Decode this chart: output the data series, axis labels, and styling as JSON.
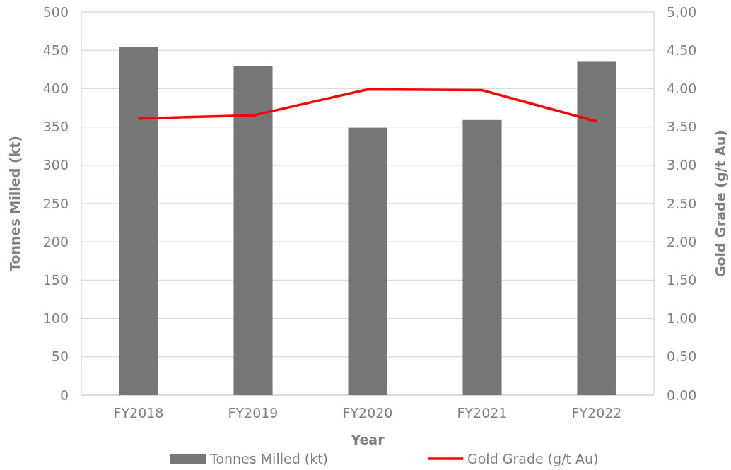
{
  "chart_data": {
    "type": "bar",
    "xlabel": "Year",
    "ylabel": "Tonnes Milled (kt)",
    "y2label": "Gold Grade (g/t Au)",
    "categories": [
      "FY2018",
      "FY2019",
      "FY2020",
      "FY2021",
      "FY2022"
    ],
    "series": [
      {
        "name": "Tonnes Milled (kt)",
        "color": "#767676",
        "values": [
          454,
          429,
          349,
          359,
          435
        ]
      },
      {
        "name": "Gold Grade (g/t Au)",
        "type": "line",
        "axis": "y2",
        "color": "#ff0000",
        "values": [
          3.61,
          3.65,
          3.99,
          3.98,
          3.57
        ]
      }
    ],
    "ylim": [
      0,
      500
    ],
    "yticks": [
      0,
      50,
      100,
      150,
      200,
      250,
      300,
      350,
      400,
      450,
      500
    ],
    "y2lim": [
      0,
      5
    ],
    "y2ticks": [
      {
        "value": 0,
        "label": "0.00"
      },
      {
        "value": 0.5,
        "label": "0.50"
      },
      {
        "value": 1,
        "label": "1.00"
      },
      {
        "value": 1.5,
        "label": "1.50"
      },
      {
        "value": 2,
        "label": "2.00"
      },
      {
        "value": 2.5,
        "label": "2.50"
      },
      {
        "value": 3,
        "label": "3.00"
      },
      {
        "value": 3.5,
        "label": "3.50"
      },
      {
        "value": 4,
        "label": "4.00"
      },
      {
        "value": 4.5,
        "label": "4.50"
      },
      {
        "value": 5,
        "label": "5.00"
      }
    ],
    "grid": "y",
    "legend": "bottom",
    "marker": "none",
    "line_style": "solid"
  }
}
